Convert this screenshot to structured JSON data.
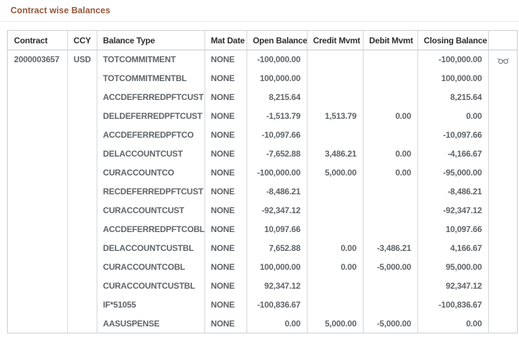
{
  "page": {
    "title": "Contract wise Balances"
  },
  "colors": {
    "title_text": "#95573a",
    "header_text": "#2e2e2e",
    "cell_text": "#606468",
    "table_border": "#c9ccd0",
    "column_border": "#d3d6d9",
    "divider": "#e9e9e9",
    "background": "#ffffff",
    "icon": "#6e7276"
  },
  "icons": {
    "view": "eyeglasses-icon"
  },
  "table": {
    "columns": [
      {
        "key": "contract",
        "label": "Contract"
      },
      {
        "key": "ccy",
        "label": "CCY"
      },
      {
        "key": "balance_type",
        "label": "Balance Type"
      },
      {
        "key": "mat_date",
        "label": "Mat Date"
      },
      {
        "key": "open_balance",
        "label": "Open Balance"
      },
      {
        "key": "credit_mvmt",
        "label": "Credit Mvmt"
      },
      {
        "key": "debit_mvmt",
        "label": "Debit Mvmt"
      },
      {
        "key": "closing_balance",
        "label": "Closing Balance"
      },
      {
        "key": "actions",
        "label": ""
      }
    ],
    "rows": [
      {
        "contract": "2000003657",
        "ccy": "USD",
        "balance_type": "TOTCOMMITMENT",
        "mat_date": "NONE",
        "open_balance": "-100,000.00",
        "credit_mvmt": "",
        "debit_mvmt": "",
        "closing_balance": "-100,000.00",
        "view": true
      },
      {
        "contract": "",
        "ccy": "",
        "balance_type": "TOTCOMMITMENTBL",
        "mat_date": "NONE",
        "open_balance": "100,000.00",
        "credit_mvmt": "",
        "debit_mvmt": "",
        "closing_balance": "100,000.00",
        "view": false
      },
      {
        "contract": "",
        "ccy": "",
        "balance_type": "ACCDEFERREDPFTCUST",
        "mat_date": "NONE",
        "open_balance": "8,215.64",
        "credit_mvmt": "",
        "debit_mvmt": "",
        "closing_balance": "8,215.64",
        "view": false
      },
      {
        "contract": "",
        "ccy": "",
        "balance_type": "DELDEFERREDPFTCUST",
        "mat_date": "NONE",
        "open_balance": "-1,513.79",
        "credit_mvmt": "1,513.79",
        "debit_mvmt": "0.00",
        "closing_balance": "0.00",
        "view": false
      },
      {
        "contract": "",
        "ccy": "",
        "balance_type": "ACCDEFERREDPFTCO",
        "mat_date": "NONE",
        "open_balance": "-10,097.66",
        "credit_mvmt": "",
        "debit_mvmt": "",
        "closing_balance": "-10,097.66",
        "view": false
      },
      {
        "contract": "",
        "ccy": "",
        "balance_type": "DELACCOUNTCUST",
        "mat_date": "NONE",
        "open_balance": "-7,652.88",
        "credit_mvmt": "3,486.21",
        "debit_mvmt": "0.00",
        "closing_balance": "-4,166.67",
        "view": false
      },
      {
        "contract": "",
        "ccy": "",
        "balance_type": "CURACCOUNTCO",
        "mat_date": "NONE",
        "open_balance": "-100,000.00",
        "credit_mvmt": "5,000.00",
        "debit_mvmt": "0.00",
        "closing_balance": "-95,000.00",
        "view": false
      },
      {
        "contract": "",
        "ccy": "",
        "balance_type": "RECDEFERREDPFTCUST",
        "mat_date": "NONE",
        "open_balance": "-8,486.21",
        "credit_mvmt": "",
        "debit_mvmt": "",
        "closing_balance": "-8,486.21",
        "view": false
      },
      {
        "contract": "",
        "ccy": "",
        "balance_type": "CURACCOUNTCUST",
        "mat_date": "NONE",
        "open_balance": "-92,347.12",
        "credit_mvmt": "",
        "debit_mvmt": "",
        "closing_balance": "-92,347.12",
        "view": false
      },
      {
        "contract": "",
        "ccy": "",
        "balance_type": "ACCDEFERREDPFTCOBL",
        "mat_date": "NONE",
        "open_balance": "10,097.66",
        "credit_mvmt": "",
        "debit_mvmt": "",
        "closing_balance": "10,097.66",
        "view": false
      },
      {
        "contract": "",
        "ccy": "",
        "balance_type": "DELACCOUNTCUSTBL",
        "mat_date": "NONE",
        "open_balance": "7,652.88",
        "credit_mvmt": "0.00",
        "debit_mvmt": "-3,486.21",
        "closing_balance": "4,166.67",
        "view": false
      },
      {
        "contract": "",
        "ccy": "",
        "balance_type": "CURACCOUNTCOBL",
        "mat_date": "NONE",
        "open_balance": "100,000.00",
        "credit_mvmt": "0.00",
        "debit_mvmt": "-5,000.00",
        "closing_balance": "95,000.00",
        "view": false
      },
      {
        "contract": "",
        "ccy": "",
        "balance_type": "CURACCOUNTCUSTBL",
        "mat_date": "NONE",
        "open_balance": "92,347.12",
        "credit_mvmt": "",
        "debit_mvmt": "",
        "closing_balance": "92,347.12",
        "view": false
      },
      {
        "contract": "",
        "ccy": "",
        "balance_type": "IF*51055",
        "mat_date": "NONE",
        "open_balance": "-100,836.67",
        "credit_mvmt": "",
        "debit_mvmt": "",
        "closing_balance": "-100,836.67",
        "view": false
      },
      {
        "contract": "",
        "ccy": "",
        "balance_type": "AASUSPENSE",
        "mat_date": "NONE",
        "open_balance": "0.00",
        "credit_mvmt": "5,000.00",
        "debit_mvmt": "-5,000.00",
        "closing_balance": "0.00",
        "view": false
      }
    ]
  }
}
